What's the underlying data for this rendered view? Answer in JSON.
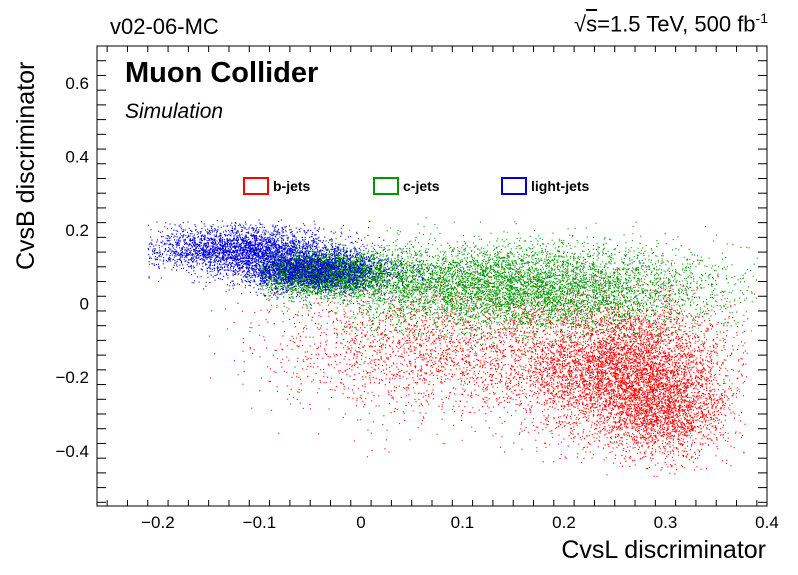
{
  "header": {
    "left_text": "v02-06-MC",
    "energy_prefix": "s",
    "energy_text": "=1.5 TeV, 500 fb",
    "energy_sup": "-1"
  },
  "experiment": {
    "title": "Muon Collider",
    "subtitle": "Simulation"
  },
  "chart_data": {
    "type": "scatter",
    "xlabel": "CvsL discriminator",
    "ylabel": "CvsB discriminator",
    "xlim": [
      -0.26,
      0.4
    ],
    "ylim": [
      -0.55,
      0.7
    ],
    "x_ticks": [
      -0.2,
      -0.1,
      0,
      0.1,
      0.2,
      0.3,
      0.4
    ],
    "x_tick_labels": [
      "−0.2",
      "−0.1",
      "0",
      "0.1",
      "0.2",
      "0.3",
      "0.4"
    ],
    "y_ticks": [
      -0.4,
      -0.2,
      0,
      0.2,
      0.4,
      0.6
    ],
    "y_tick_labels": [
      "−0.4",
      "−0.2",
      "0",
      "0.2",
      "0.4",
      "0.6"
    ],
    "grid": false,
    "legend_placement": "top-center",
    "series": [
      {
        "name": "b-jets",
        "color": "#ff0000",
        "clusters": [
          {
            "cx": 0.26,
            "cy": -0.18,
            "sx": 0.05,
            "sy": 0.09,
            "n": 5200
          },
          {
            "cx": 0.09,
            "cy": -0.12,
            "sx": 0.09,
            "sy": 0.09,
            "n": 2600
          },
          {
            "cx": 0.3,
            "cy": -0.3,
            "sx": 0.03,
            "sy": 0.06,
            "n": 1600
          }
        ],
        "x_range": [
          -0.15,
          0.38
        ],
        "y_range": [
          -0.47,
          0.12
        ]
      },
      {
        "name": "c-jets",
        "color": "#009900",
        "clusters": [
          {
            "cx": -0.04,
            "cy": 0.085,
            "sx": 0.035,
            "sy": 0.028,
            "n": 3800
          },
          {
            "cx": 0.18,
            "cy": 0.04,
            "sx": 0.09,
            "sy": 0.06,
            "n": 5000
          },
          {
            "cx": 0.08,
            "cy": 0.06,
            "sx": 0.07,
            "sy": 0.05,
            "n": 1800
          }
        ],
        "x_range": [
          -0.1,
          0.39
        ],
        "y_range": [
          -0.12,
          0.24
        ]
      },
      {
        "name": "light-jets",
        "color": "#0000dd",
        "clusters": [
          {
            "cx": -0.12,
            "cy": 0.15,
            "sx": 0.045,
            "sy": 0.03,
            "n": 2800
          },
          {
            "cx": -0.05,
            "cy": 0.09,
            "sx": 0.04,
            "sy": 0.03,
            "n": 2400
          }
        ],
        "x_range": [
          -0.21,
          0.1
        ],
        "y_range": [
          0.0,
          0.23
        ]
      }
    ]
  }
}
